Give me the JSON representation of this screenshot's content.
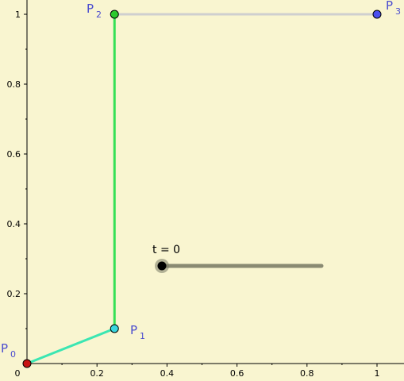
{
  "applet": {
    "slider": {
      "label": "t = 0",
      "value": 0,
      "fraction": 0
    },
    "points": [
      {
        "id": "P0",
        "letter": "P",
        "sub": "0",
        "x": 0,
        "y": 0,
        "color": "#c81414"
      },
      {
        "id": "P1",
        "letter": "P",
        "sub": "1",
        "x": 0.25,
        "y": 0.1,
        "color": "#3ad6df"
      },
      {
        "id": "P2",
        "letter": "P",
        "sub": "2",
        "x": 0.25,
        "y": 1,
        "color": "#2ec92e"
      },
      {
        "id": "P3",
        "letter": "P",
        "sub": "3",
        "x": 1,
        "y": 1,
        "color": "#4b4ff0"
      }
    ],
    "segments": [
      {
        "from": "P0",
        "to": "P1",
        "color": "#3be6b2"
      },
      {
        "from": "P1",
        "to": "P2",
        "color": "#35e055"
      },
      {
        "from": "P2",
        "to": "P3",
        "color": "#cfcfcf"
      }
    ],
    "axes": {
      "x_ticks": [
        "0",
        "0.2",
        "0.4",
        "0.6",
        "0.8",
        "1"
      ],
      "y_ticks": [
        "0.2",
        "0.4",
        "0.6",
        "0.8",
        "1"
      ],
      "xlim": [
        0,
        1
      ],
      "ylim": [
        0,
        1
      ]
    },
    "colors": {
      "background": "#f9f5d0",
      "slider_track": "#8a8a72"
    }
  }
}
